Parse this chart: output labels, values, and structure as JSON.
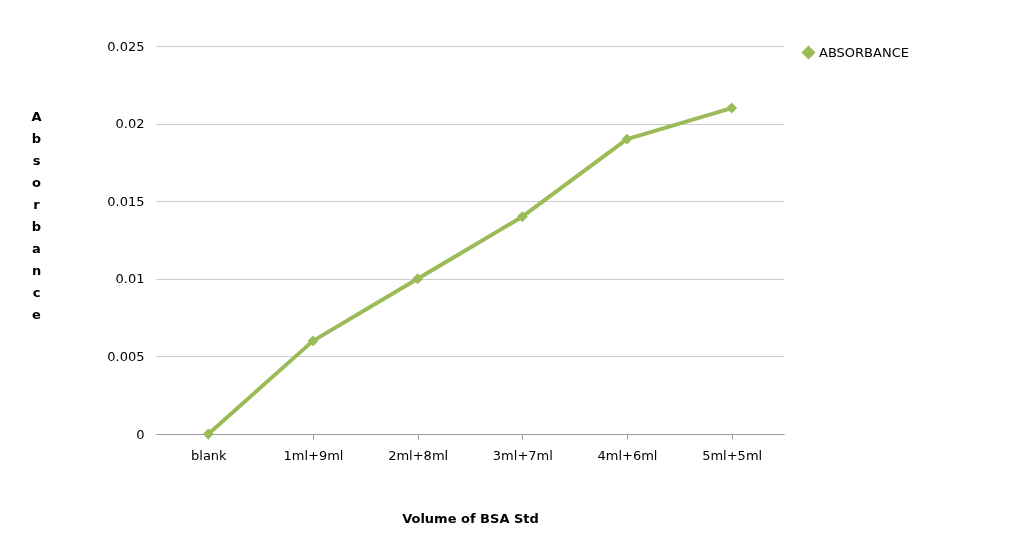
{
  "chart_data": {
    "type": "line",
    "xlabel": "Volume of BSA Std",
    "ylabel": "Absorbance",
    "categories": [
      "blank",
      "1ml+9ml",
      "2ml+8ml",
      "3ml+7ml",
      "4ml+6ml",
      "5ml+5ml"
    ],
    "series": [
      {
        "name": "ABSORBANCE",
        "color": "#9bbb59",
        "values": [
          0,
          0.006,
          0.01,
          0.014,
          0.019,
          0.021
        ]
      }
    ],
    "ylim": [
      0,
      0.025
    ],
    "yticks": [
      0,
      0.005,
      0.01,
      0.015,
      0.02,
      0.025
    ],
    "grid": "y",
    "legend": "right",
    "marker": "diamond",
    "line_style": "solid"
  }
}
